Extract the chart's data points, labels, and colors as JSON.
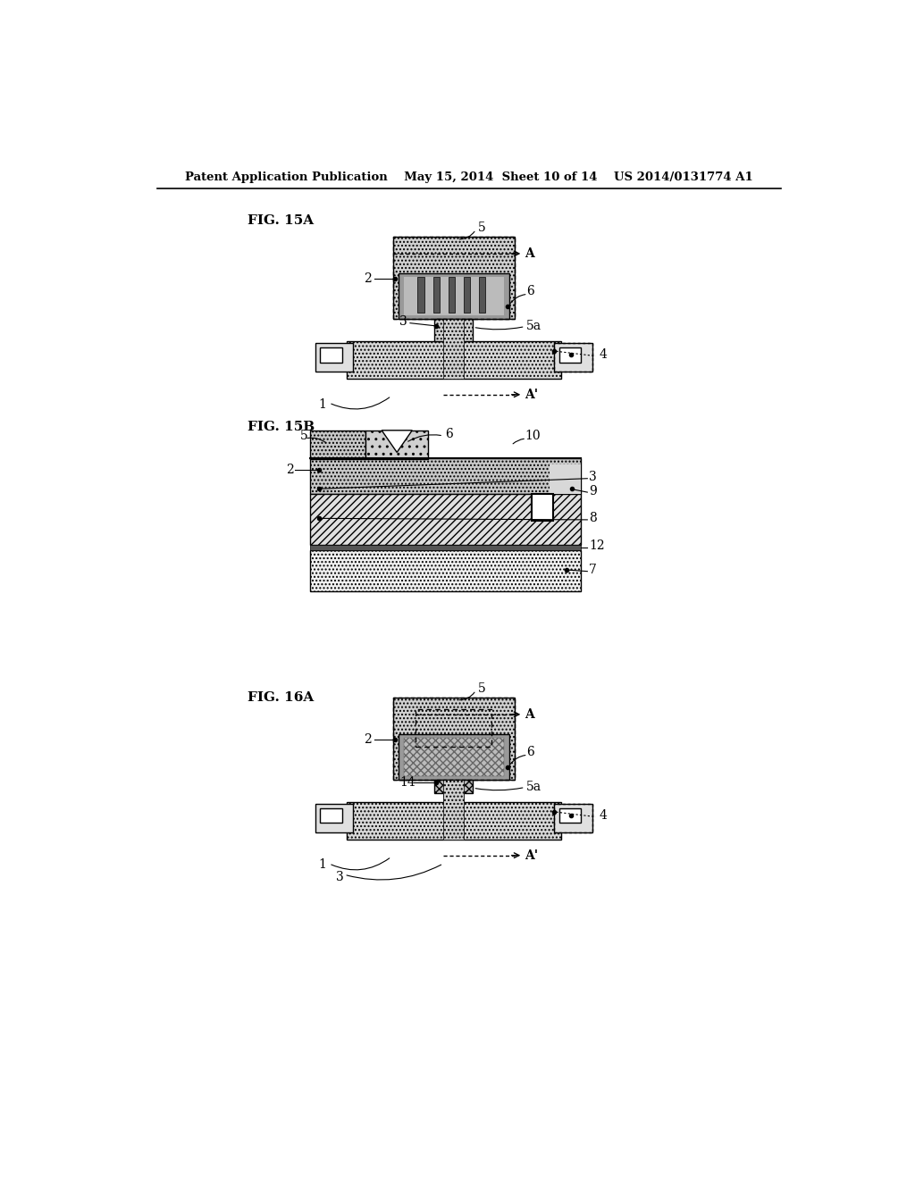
{
  "header": "Patent Application Publication    May 15, 2014  Sheet 10 of 14    US 2014/0131774 A1",
  "bg": "#ffffff",
  "fig15a_label": "FIG. 15A",
  "fig15b_label": "FIG. 15B",
  "fig16a_label": "FIG. 16A"
}
